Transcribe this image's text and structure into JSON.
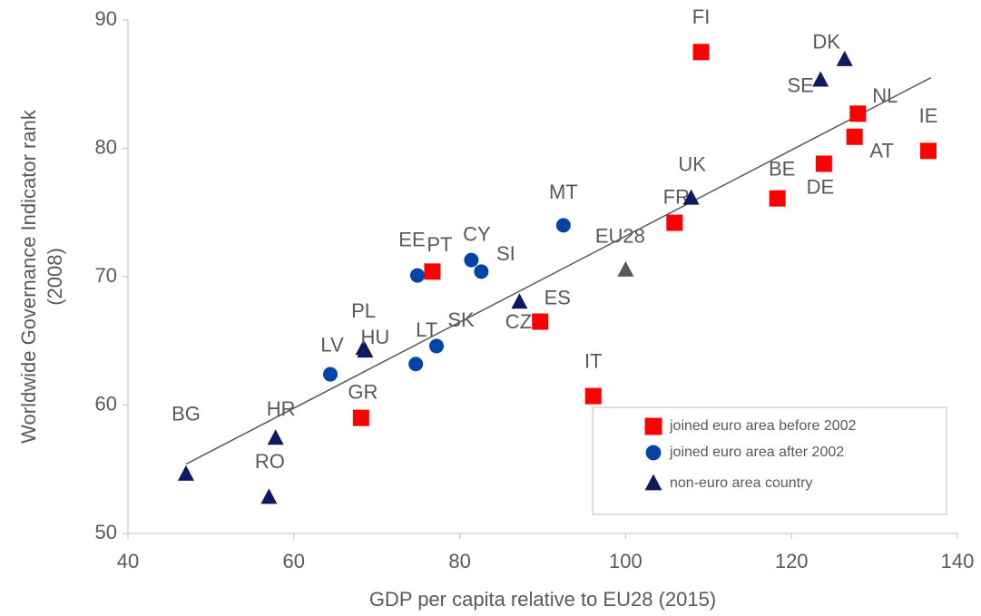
{
  "chart_data": {
    "type": "scatter",
    "xlabel": "GDP per capita relative to EU28 (2015)",
    "ylabel": [
      "Worldwide Governance Indicator rank",
      "(2008)"
    ],
    "xlim": [
      40,
      140
    ],
    "xticks": [
      40,
      60,
      80,
      100,
      120,
      140
    ],
    "ylim": [
      50,
      90
    ],
    "yticks": [
      50,
      60,
      70,
      80,
      90
    ],
    "grid": false,
    "legend": "lower right",
    "series": [
      {
        "name": "joined euro area before 2002",
        "color": "#ff0000",
        "marker": "square",
        "labels": [
          "FI",
          "NL",
          "AT",
          "IE",
          "DE",
          "BE",
          "FR",
          "PT",
          "ES",
          "IT",
          "GR"
        ],
        "x": [
          109.1,
          128.0,
          127.6,
          136.5,
          123.9,
          118.3,
          105.9,
          76.7,
          89.7,
          96.1,
          68.1
        ],
        "values": [
          87.5,
          82.7,
          80.9,
          79.8,
          78.8,
          76.1,
          74.2,
          70.4,
          66.5,
          60.7,
          59.0
        ]
      },
      {
        "name": "joined euro area after 2002",
        "color": "#0044a8",
        "marker": "circle",
        "labels": [
          "MT",
          "CY",
          "SI",
          "EE",
          "SK",
          "LT",
          "LV"
        ],
        "x": [
          92.5,
          81.4,
          82.6,
          74.9,
          77.2,
          74.7,
          64.4
        ],
        "values": [
          74.0,
          71.3,
          70.4,
          70.1,
          64.6,
          63.2,
          62.4
        ]
      },
      {
        "name": "non-euro area country",
        "color": "#0d1a5e",
        "marker": "triangle",
        "labels": [
          "DK",
          "SE",
          "UK",
          "CZ",
          "PL",
          "HU",
          "HR",
          "RO",
          "BG"
        ],
        "x": [
          126.4,
          123.5,
          107.9,
          87.2,
          68.4,
          68.6,
          57.8,
          57.0,
          47.0
        ],
        "values": [
          86.9,
          85.3,
          76.1,
          68.0,
          64.4,
          64.2,
          57.4,
          52.8,
          54.6
        ]
      }
    ],
    "reference_point": {
      "label": "EU28",
      "x": 100,
      "y": 70.5,
      "color": "#595959",
      "marker": "triangle"
    },
    "trendline": {
      "x": [
        47,
        136.8
      ],
      "y": [
        55.4,
        85.5
      ],
      "color": "#595959"
    }
  }
}
